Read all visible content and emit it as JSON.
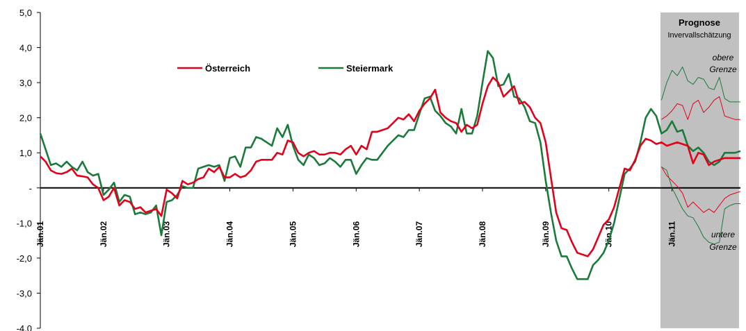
{
  "chart_data": {
    "type": "line",
    "categories": [
      "Jän.01",
      null,
      null,
      null,
      null,
      null,
      null,
      null,
      null,
      null,
      null,
      null,
      "Jän.02",
      null,
      null,
      null,
      null,
      null,
      null,
      null,
      null,
      null,
      null,
      null,
      "Jän.03",
      null,
      null,
      null,
      null,
      null,
      null,
      null,
      null,
      null,
      null,
      null,
      "Jän.04",
      null,
      null,
      null,
      null,
      null,
      null,
      null,
      null,
      null,
      null,
      null,
      "Jän.05",
      null,
      null,
      null,
      null,
      null,
      null,
      null,
      null,
      null,
      null,
      null,
      "Jän.06",
      null,
      null,
      null,
      null,
      null,
      null,
      null,
      null,
      null,
      null,
      null,
      "Jän.07",
      null,
      null,
      null,
      null,
      null,
      null,
      null,
      null,
      null,
      null,
      null,
      "Jän.08",
      null,
      null,
      null,
      null,
      null,
      null,
      null,
      null,
      null,
      null,
      null,
      "Jän.09",
      null,
      null,
      null,
      null,
      null,
      null,
      null,
      null,
      null,
      null,
      null,
      "Jän.10",
      null,
      null,
      null,
      null,
      null,
      null,
      null,
      null,
      null,
      null,
      null,
      "Jän.11",
      null,
      null,
      null,
      null,
      null,
      null,
      null,
      null,
      null,
      null,
      null,
      null,
      null
    ],
    "series": [
      {
        "name": "Österreich",
        "color": "#e2001a",
        "values": [
          0.9,
          0.75,
          0.5,
          0.42,
          0.4,
          0.45,
          0.55,
          0.35,
          0.33,
          0.3,
          0.1,
          0.0,
          -0.35,
          -0.25,
          0.0,
          -0.5,
          -0.35,
          -0.4,
          -0.6,
          -0.55,
          -0.7,
          -0.65,
          -0.6,
          -0.8,
          -0.05,
          -0.15,
          -0.3,
          0.2,
          0.1,
          0.15,
          0.25,
          0.3,
          0.55,
          0.45,
          0.6,
          0.3,
          0.3,
          0.4,
          0.3,
          0.35,
          0.5,
          0.75,
          0.8,
          0.8,
          0.8,
          1.0,
          0.95,
          1.35,
          1.3,
          1.0,
          0.9,
          1.0,
          1.05,
          0.95,
          0.95,
          1.0,
          1.0,
          0.95,
          1.1,
          1.2,
          0.95,
          1.2,
          1.1,
          1.6,
          1.6,
          1.65,
          1.7,
          1.85,
          2.0,
          1.95,
          2.1,
          1.9,
          2.2,
          2.4,
          2.55,
          2.8,
          2.15,
          2.0,
          1.9,
          1.85,
          1.6,
          1.8,
          1.7,
          1.8,
          2.4,
          2.9,
          3.15,
          3.0,
          2.6,
          2.75,
          2.9,
          2.4,
          2.45,
          2.3,
          2.0,
          1.85,
          1.3,
          0.3,
          -0.7,
          -1.15,
          -1.2,
          -1.55,
          -1.85,
          -1.9,
          -1.95,
          -1.75,
          -1.4,
          -1.05,
          -0.9,
          -0.55,
          0.0,
          0.55,
          0.5,
          0.8,
          1.2,
          1.4,
          1.35,
          1.25,
          1.3,
          1.2,
          1.25,
          1.3,
          1.25,
          1.2,
          0.7,
          1.0,
          0.95,
          0.65,
          0.75,
          0.8,
          0.85,
          0.85,
          0.85,
          0.85
        ],
        "upper": [
          null,
          null,
          null,
          null,
          null,
          null,
          null,
          null,
          null,
          null,
          null,
          null,
          null,
          null,
          null,
          null,
          null,
          null,
          null,
          null,
          null,
          null,
          null,
          null,
          null,
          null,
          null,
          null,
          null,
          null,
          null,
          null,
          null,
          null,
          null,
          null,
          null,
          null,
          null,
          null,
          null,
          null,
          null,
          null,
          null,
          null,
          null,
          null,
          null,
          null,
          null,
          null,
          null,
          null,
          null,
          null,
          null,
          null,
          null,
          null,
          null,
          null,
          null,
          null,
          null,
          null,
          null,
          null,
          null,
          null,
          null,
          null,
          null,
          null,
          null,
          null,
          null,
          null,
          null,
          null,
          null,
          null,
          null,
          null,
          null,
          null,
          null,
          null,
          null,
          null,
          null,
          null,
          null,
          null,
          null,
          null,
          null,
          null,
          null,
          null,
          null,
          null,
          null,
          null,
          null,
          null,
          null,
          null,
          null,
          null,
          null,
          null,
          null,
          null,
          null,
          null,
          null,
          null,
          1.95,
          2.05,
          2.2,
          2.4,
          2.35,
          1.95,
          2.4,
          2.5,
          2.15,
          2.3,
          2.5,
          2.6,
          2.05,
          2.0,
          1.95,
          1.95
        ],
        "lower": [
          null,
          null,
          null,
          null,
          null,
          null,
          null,
          null,
          null,
          null,
          null,
          null,
          null,
          null,
          null,
          null,
          null,
          null,
          null,
          null,
          null,
          null,
          null,
          null,
          null,
          null,
          null,
          null,
          null,
          null,
          null,
          null,
          null,
          null,
          null,
          null,
          null,
          null,
          null,
          null,
          null,
          null,
          null,
          null,
          null,
          null,
          null,
          null,
          null,
          null,
          null,
          null,
          null,
          null,
          null,
          null,
          null,
          null,
          null,
          null,
          null,
          null,
          null,
          null,
          null,
          null,
          null,
          null,
          null,
          null,
          null,
          null,
          null,
          null,
          null,
          null,
          null,
          null,
          null,
          null,
          null,
          null,
          null,
          null,
          null,
          null,
          null,
          null,
          null,
          null,
          null,
          null,
          null,
          null,
          null,
          null,
          null,
          null,
          null,
          null,
          null,
          null,
          null,
          null,
          null,
          null,
          null,
          null,
          null,
          null,
          null,
          null,
          null,
          null,
          null,
          null,
          null,
          null,
          0.6,
          0.35,
          0.2,
          0.05,
          -0.15,
          -0.55,
          -0.4,
          -0.55,
          -0.7,
          -0.6,
          -0.7,
          -0.5,
          -0.3,
          -0.2,
          -0.15,
          -0.1
        ]
      },
      {
        "name": "Steiermark",
        "color": "#1a7a3a",
        "values": [
          1.55,
          1.1,
          0.65,
          0.7,
          0.6,
          0.75,
          0.6,
          0.5,
          0.75,
          0.45,
          0.35,
          0.4,
          -0.2,
          -0.05,
          0.15,
          -0.4,
          -0.2,
          -0.25,
          -0.75,
          -0.7,
          -0.75,
          -0.7,
          -0.5,
          -1.35,
          -0.4,
          -0.35,
          -0.2,
          0.05,
          0.0,
          0.0,
          0.55,
          0.6,
          0.65,
          0.6,
          0.65,
          0.2,
          0.85,
          0.9,
          0.6,
          1.15,
          1.15,
          1.45,
          1.4,
          1.3,
          1.2,
          1.7,
          1.45,
          1.8,
          1.2,
          0.8,
          0.65,
          0.95,
          0.85,
          0.65,
          0.7,
          0.85,
          0.75,
          0.6,
          0.8,
          0.8,
          0.4,
          0.65,
          0.85,
          0.8,
          0.8,
          1.0,
          1.2,
          1.35,
          1.5,
          1.45,
          1.65,
          1.65,
          2.1,
          2.55,
          2.6,
          2.2,
          2.05,
          1.85,
          1.75,
          1.55,
          2.25,
          1.55,
          1.55,
          2.05,
          3.0,
          3.9,
          3.7,
          2.9,
          2.95,
          3.25,
          2.6,
          2.55,
          2.3,
          1.9,
          1.85,
          1.3,
          0.2,
          -0.7,
          -1.5,
          -1.95,
          -1.95,
          -2.3,
          -2.6,
          -2.6,
          -2.6,
          -2.2,
          -2.05,
          -1.85,
          -1.5,
          -1.0,
          -0.3,
          0.4,
          0.55,
          0.75,
          1.3,
          2.0,
          2.25,
          2.05,
          1.55,
          1.65,
          1.9,
          1.6,
          1.65,
          1.2,
          1.05,
          1.15,
          1.0,
          0.75,
          0.65,
          0.75,
          1.0,
          1.0,
          1.0,
          1.05
        ],
        "upper": [
          null,
          null,
          null,
          null,
          null,
          null,
          null,
          null,
          null,
          null,
          null,
          null,
          null,
          null,
          null,
          null,
          null,
          null,
          null,
          null,
          null,
          null,
          null,
          null,
          null,
          null,
          null,
          null,
          null,
          null,
          null,
          null,
          null,
          null,
          null,
          null,
          null,
          null,
          null,
          null,
          null,
          null,
          null,
          null,
          null,
          null,
          null,
          null,
          null,
          null,
          null,
          null,
          null,
          null,
          null,
          null,
          null,
          null,
          null,
          null,
          null,
          null,
          null,
          null,
          null,
          null,
          null,
          null,
          null,
          null,
          null,
          null,
          null,
          null,
          null,
          null,
          null,
          null,
          null,
          null,
          null,
          null,
          null,
          null,
          null,
          null,
          null,
          null,
          null,
          null,
          null,
          null,
          null,
          null,
          null,
          null,
          null,
          null,
          null,
          null,
          null,
          null,
          null,
          null,
          null,
          null,
          null,
          null,
          null,
          null,
          null,
          null,
          null,
          null,
          null,
          null,
          null,
          null,
          2.5,
          3.0,
          3.35,
          3.2,
          3.45,
          3.05,
          2.95,
          3.15,
          3.1,
          2.85,
          2.8,
          3.15,
          2.55,
          2.45,
          2.45,
          2.45
        ],
        "lower": [
          null,
          null,
          null,
          null,
          null,
          null,
          null,
          null,
          null,
          null,
          null,
          null,
          null,
          null,
          null,
          null,
          null,
          null,
          null,
          null,
          null,
          null,
          null,
          null,
          null,
          null,
          null,
          null,
          null,
          null,
          null,
          null,
          null,
          null,
          null,
          null,
          null,
          null,
          null,
          null,
          null,
          null,
          null,
          null,
          null,
          null,
          null,
          null,
          null,
          null,
          null,
          null,
          null,
          null,
          null,
          null,
          null,
          null,
          null,
          null,
          null,
          null,
          null,
          null,
          null,
          null,
          null,
          null,
          null,
          null,
          null,
          null,
          null,
          null,
          null,
          null,
          null,
          null,
          null,
          null,
          null,
          null,
          null,
          null,
          null,
          null,
          null,
          null,
          null,
          null,
          null,
          null,
          null,
          null,
          null,
          null,
          null,
          null,
          null,
          null,
          null,
          null,
          null,
          null,
          null,
          null,
          null,
          null,
          null,
          null,
          null,
          null,
          null,
          null,
          null,
          null,
          null,
          null,
          0.6,
          0.5,
          0.0,
          -0.3,
          -0.6,
          -0.8,
          -0.85,
          -1.1,
          -1.4,
          -1.55,
          -1.6,
          -1.55,
          -0.6,
          -0.5,
          -0.45,
          -0.45
        ]
      }
    ],
    "ylim": [
      -4,
      5
    ],
    "yticks": [
      {
        "value": -4,
        "label": "-4,0"
      },
      {
        "value": -3,
        "label": "-3,0"
      },
      {
        "value": -2,
        "label": "-2,0"
      },
      {
        "value": -1,
        "label": "-1,0"
      },
      {
        "value": 0,
        "label": "-"
      },
      {
        "value": 1,
        "label": "1,0"
      },
      {
        "value": 2,
        "label": "2,0"
      },
      {
        "value": 3,
        "label": "3,0"
      },
      {
        "value": 4,
        "label": "4,0"
      },
      {
        "value": 5,
        "label": "5,0"
      }
    ],
    "forecast": {
      "title": "Prognose",
      "subtitle": "Invervallschätzung",
      "upper_label": [
        "obere",
        "Grenze"
      ],
      "lower_label": [
        "untere",
        "Grenze"
      ]
    }
  }
}
